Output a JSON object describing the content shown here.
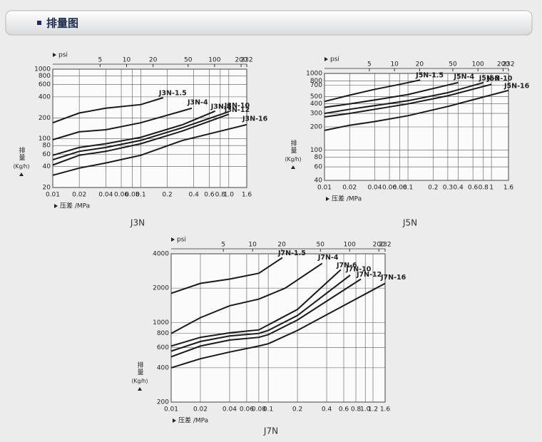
{
  "header": {
    "title": "排量图"
  },
  "chart_data": [
    {
      "type": "line",
      "title": "J3N",
      "x_label": "压差 /MPa",
      "x2_label": "psi",
      "y_label": "排量",
      "y_unit": "(Kg/h)",
      "xscale": "log",
      "yscale": "log",
      "grid": true,
      "color": "#1a1a1a",
      "xlim": [
        0.01,
        1.6
      ],
      "ylim": [
        20,
        1000
      ],
      "x2lim": [
        1.45,
        232
      ],
      "xticks": [
        0.01,
        0.02,
        0.04,
        0.06,
        0.08,
        0.1,
        0.2,
        0.4,
        0.6,
        0.8,
        {
          "value": 1,
          "label": "1.0"
        },
        1.6
      ],
      "x2ticks": [
        5,
        10,
        20,
        50,
        100,
        200,
        232
      ],
      "yticks": [
        20,
        40,
        60,
        80,
        100,
        200,
        400,
        600,
        800,
        1000
      ],
      "series": [
        {
          "name": "J3N-1.5",
          "x": [
            0.01,
            0.02,
            0.04,
            0.1,
            0.18
          ],
          "values": [
            170,
            235,
            275,
            310,
            390
          ]
        },
        {
          "name": "J3N-4",
          "x": [
            0.01,
            0.02,
            0.04,
            0.1,
            0.38
          ],
          "values": [
            97,
            126,
            135,
            170,
            275
          ]
        },
        {
          "name": "J3N-8",
          "x": [
            0.01,
            0.02,
            0.04,
            0.1,
            0.3,
            0.7
          ],
          "values": [
            58,
            75,
            85,
            105,
            160,
            250
          ]
        },
        {
          "name": "J3N-10",
          "x": [
            0.01,
            0.02,
            0.04,
            0.1,
            0.3,
            1
          ],
          "values": [
            50,
            66,
            75,
            95,
            145,
            245
          ]
        },
        {
          "name": "J3N-12",
          "x": [
            0.01,
            0.02,
            0.04,
            0.1,
            0.3,
            1
          ],
          "values": [
            42,
            58,
            66,
            85,
            130,
            225
          ]
        },
        {
          "name": "J3N-16",
          "x": [
            0.01,
            0.02,
            0.04,
            0.1,
            0.3,
            1.6
          ],
          "values": [
            30,
            38,
            45,
            58,
            95,
            160
          ]
        }
      ]
    },
    {
      "type": "line",
      "title": "J5N",
      "x_label": "压差 /MPa",
      "x2_label": "psi",
      "y_label": "排量",
      "y_unit": "(Kg/h)",
      "xscale": "log",
      "yscale": "log",
      "grid": true,
      "color": "#1a1a1a",
      "xlim": [
        0.01,
        1.6
      ],
      "ylim": [
        40,
        1000
      ],
      "x2lim": [
        1.45,
        232
      ],
      "xticks": [
        0.01,
        0.02,
        0.04,
        0.06,
        0.08,
        0.1,
        0.2,
        0.3,
        0.4,
        0.6,
        0.8,
        1,
        1.6
      ],
      "x2ticks": [
        5,
        10,
        20,
        50,
        100,
        200,
        232
      ],
      "yticks": [
        40,
        60,
        80,
        100,
        200,
        300,
        400,
        500,
        700,
        800,
        1000
      ],
      "series": [
        {
          "name": "J5N-1.5",
          "x": [
            0.01,
            0.02,
            0.04,
            0.08,
            0.14
          ],
          "values": [
            430,
            520,
            620,
            720,
            820
          ]
        },
        {
          "name": "J5N-4",
          "x": [
            0.01,
            0.02,
            0.04,
            0.1,
            0.4
          ],
          "values": [
            360,
            400,
            450,
            530,
            760
          ]
        },
        {
          "name": "J5N-8",
          "x": [
            0.01,
            0.02,
            0.04,
            0.1,
            0.3,
            0.8
          ],
          "values": [
            300,
            340,
            380,
            440,
            560,
            760
          ]
        },
        {
          "name": "J5N-10",
          "x": [
            0.01,
            0.02,
            0.04,
            0.1,
            0.3,
            1
          ],
          "values": [
            270,
            300,
            340,
            400,
            510,
            720
          ]
        },
        {
          "name": "J5N-16",
          "x": [
            0.01,
            0.02,
            0.04,
            0.1,
            0.3,
            1.6
          ],
          "values": [
            180,
            210,
            235,
            280,
            370,
            600
          ]
        }
      ]
    },
    {
      "type": "line",
      "title": "J7N",
      "x_label": "压差 /MPa",
      "x2_label": "psi",
      "y_label": "排量",
      "y_unit": "(Kg/h)",
      "xscale": "log",
      "yscale": "log",
      "grid": true,
      "color": "#1a1a1a",
      "xlim": [
        0.01,
        1.6
      ],
      "ylim": [
        200,
        4000
      ],
      "x2lim": [
        1.45,
        232
      ],
      "xticks": [
        0.01,
        0.02,
        0.04,
        0.06,
        0.08,
        0.1,
        0.2,
        0.4,
        0.6,
        0.8,
        {
          "value": 1,
          "label": "1.0"
        },
        1.2,
        1.6
      ],
      "x2ticks": [
        5,
        10,
        20,
        50,
        100,
        200,
        232
      ],
      "yticks": [
        200,
        400,
        600,
        800,
        1000,
        2000,
        4000
      ],
      "series": [
        {
          "name": "J7N-1.5",
          "x": [
            0.01,
            0.02,
            0.04,
            0.08,
            0.14
          ],
          "values": [
            1800,
            2200,
            2400,
            2700,
            3700
          ]
        },
        {
          "name": "J7N-4",
          "x": [
            0.01,
            0.02,
            0.04,
            0.08,
            0.15,
            0.36
          ],
          "values": [
            800,
            1100,
            1400,
            1600,
            2000,
            3300
          ]
        },
        {
          "name": "J7N-6",
          "x": [
            0.01,
            0.02,
            0.04,
            0.08,
            0.1,
            0.2,
            0.56
          ],
          "values": [
            620,
            740,
            810,
            860,
            950,
            1300,
            2900
          ]
        },
        {
          "name": "J7N-10",
          "x": [
            0.01,
            0.02,
            0.04,
            0.08,
            0.1,
            0.2,
            0.7
          ],
          "values": [
            560,
            680,
            760,
            800,
            850,
            1150,
            2600
          ]
        },
        {
          "name": "J7N-12",
          "x": [
            0.01,
            0.02,
            0.04,
            0.08,
            0.1,
            0.2,
            0.9
          ],
          "values": [
            500,
            620,
            700,
            740,
            780,
            1050,
            2400
          ]
        },
        {
          "name": "J7N-16",
          "x": [
            0.01,
            0.02,
            0.04,
            0.08,
            0.1,
            0.2,
            1.6
          ],
          "values": [
            400,
            480,
            550,
            620,
            650,
            850,
            2200
          ]
        }
      ]
    }
  ]
}
